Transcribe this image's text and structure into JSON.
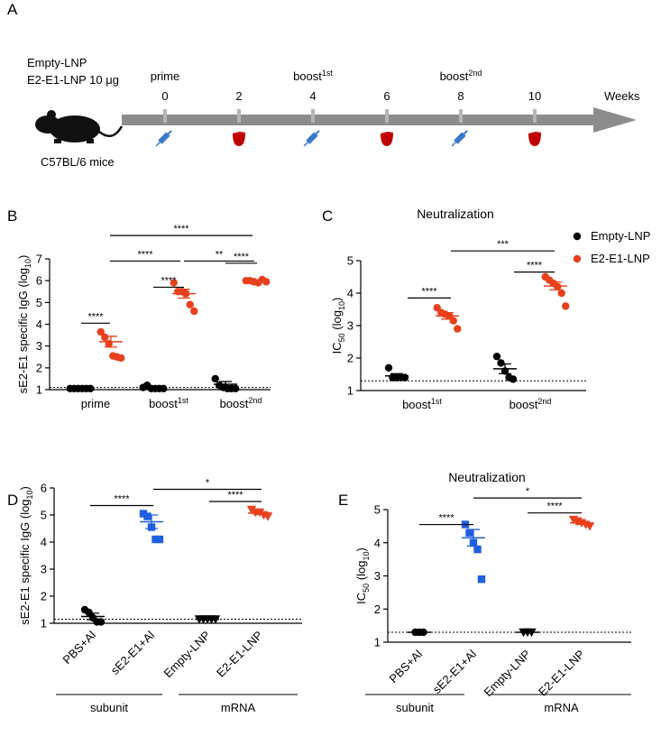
{
  "timeline": {
    "panel_label": "A",
    "groups": [
      "Empty-LNP",
      "E2-E1-LNP 10 μg"
    ],
    "animal": "C57BL/6 mice",
    "weeks": [
      0,
      2,
      4,
      6,
      8,
      10
    ],
    "labels": [
      [
        "prime"
      ],
      null,
      [
        "boost",
        "1st"
      ],
      null,
      [
        "boost",
        "2nd"
      ],
      null
    ],
    "axis_label": "Weeks"
  },
  "chart_data": [
    {
      "type": "dot",
      "panel_label": "B",
      "y_label": [
        "sE2-E1 specific IgG (log",
        "10",
        ")"
      ],
      "categories": [
        [
          "prime"
        ],
        [
          "boost",
          "1st"
        ],
        [
          "boost",
          "2nd"
        ]
      ],
      "ylim": [
        1,
        7
      ],
      "yticks": [
        1,
        2,
        3,
        4,
        5,
        6,
        7
      ],
      "reference_line": 1.1,
      "series": [
        {
          "color": "#000000",
          "marker": "circle",
          "values": [
            [
              1.05,
              1.05,
              1.05,
              1.05,
              1.05,
              1.05
            ],
            [
              1.1,
              1.2,
              1.05,
              1.05,
              1.05,
              1.05
            ],
            [
              1.5,
              1.2,
              1.1,
              1.05,
              1.05,
              1.05
            ]
          ],
          "mean": [
            1.05,
            1.1,
            1.25
          ],
          "sem": [
            0,
            0.05,
            0.12
          ]
        },
        {
          "color": "#e8401c",
          "marker": "circle",
          "values": [
            [
              3.65,
              3.4,
              3.1,
              2.55,
              2.5,
              2.45
            ],
            [
              5.9,
              5.5,
              5.5,
              5.4,
              4.9,
              4.6
            ],
            [
              6.0,
              6.0,
              5.95,
              5.9,
              6.05,
              5.95
            ]
          ],
          "mean": [
            3.2,
            5.4,
            5.97
          ],
          "sem": [
            0.25,
            0.2,
            0.03
          ]
        }
      ],
      "annotations": [
        "****",
        "****",
        "****",
        "****",
        "**",
        "****"
      ]
    },
    {
      "type": "dot",
      "panel_label": "C",
      "title": "Neutralization",
      "y_label": [
        "IC",
        "50",
        " (log",
        "10",
        ")"
      ],
      "categories": [
        [
          "boost",
          "1st"
        ],
        [
          "boost",
          "2nd"
        ]
      ],
      "ylim": [
        1,
        5
      ],
      "yticks": [
        1,
        2,
        3,
        4,
        5
      ],
      "reference_line": 1.3,
      "legend": "top-right",
      "series": [
        {
          "name": "Empty-LNP",
          "color": "#000000",
          "marker": "circle",
          "values": [
            [
              1.7,
              1.4,
              1.4,
              1.4,
              1.4
            ],
            [
              2.05,
              1.85,
              1.6,
              1.4,
              1.35
            ]
          ],
          "mean": [
            1.45,
            1.67
          ],
          "sem": [
            0.07,
            0.15
          ]
        },
        {
          "name": "E2-E1-LNP",
          "color": "#e8401c",
          "marker": "circle",
          "values": [
            [
              3.55,
              3.4,
              3.35,
              3.3,
              3.15,
              2.9
            ],
            [
              4.5,
              4.4,
              4.3,
              4.2,
              4.0,
              3.6
            ]
          ],
          "mean": [
            3.3,
            4.22
          ],
          "sem": [
            0.1,
            0.12
          ]
        }
      ],
      "annotations": [
        "****",
        "****",
        "***"
      ]
    },
    {
      "type": "dot",
      "panel_label": "D",
      "y_label": [
        "sE2-E1 specific IgG (log",
        "10",
        ")"
      ],
      "categories": [
        "PBS+Al",
        "sE2-E1+Al",
        "Empty-LNP",
        "E2-E1-LNP"
      ],
      "ylim": [
        1,
        6
      ],
      "yticks": [
        1,
        2,
        3,
        4,
        5,
        6
      ],
      "reference_line": 1.15,
      "values": [
        [
          1.5,
          1.4,
          1.2,
          1.05,
          1.05
        ],
        [
          5.05,
          4.95,
          4.55,
          4.1,
          4.1
        ],
        [
          1.15,
          1.15,
          1.15,
          1.15,
          1.15
        ],
        [
          5.2,
          5.1,
          5.1,
          5.0,
          4.95
        ]
      ],
      "mean": [
        1.25,
        4.75,
        1.15,
        5.07
      ],
      "sem": [
        0.12,
        0.25,
        0,
        0.05
      ],
      "colors": [
        "#000000",
        "#1f5fe0",
        "#000000",
        "#e8401c"
      ],
      "markers": [
        "circle",
        "square",
        "triangle-down",
        "triangle-down"
      ],
      "category_groups": [
        "subunit",
        "mRNA"
      ],
      "annotations": [
        "****",
        "****",
        "*"
      ]
    },
    {
      "type": "dot",
      "panel_label": "E",
      "title": "Neutralization",
      "y_label": [
        "IC",
        "50",
        " (log",
        "10",
        ")"
      ],
      "categories": [
        "PBS+Al",
        "sE2-E1+Al",
        "Empty-LNP",
        "E2-E1-LNP"
      ],
      "ylim": [
        1,
        5
      ],
      "yticks": [
        1,
        2,
        3,
        4,
        5
      ],
      "reference_line": 1.3,
      "values": [
        [
          1.3,
          1.3,
          1.3
        ],
        [
          4.55,
          4.3,
          4.0,
          3.8,
          2.9
        ],
        [
          1.3,
          1.3,
          1.3
        ],
        [
          4.7,
          4.65,
          4.6,
          4.55,
          4.5
        ]
      ],
      "mean": [
        1.3,
        4.15,
        1.3,
        4.6
      ],
      "sem": [
        0,
        0.25,
        0,
        0.04
      ],
      "colors": [
        "#000000",
        "#1f5fe0",
        "#000000",
        "#e8401c"
      ],
      "markers": [
        "circle",
        "square",
        "triangle-down",
        "triangle-down"
      ],
      "category_groups": [
        "subunit",
        "mRNA"
      ],
      "annotations": [
        "****",
        "****",
        "*"
      ]
    }
  ]
}
